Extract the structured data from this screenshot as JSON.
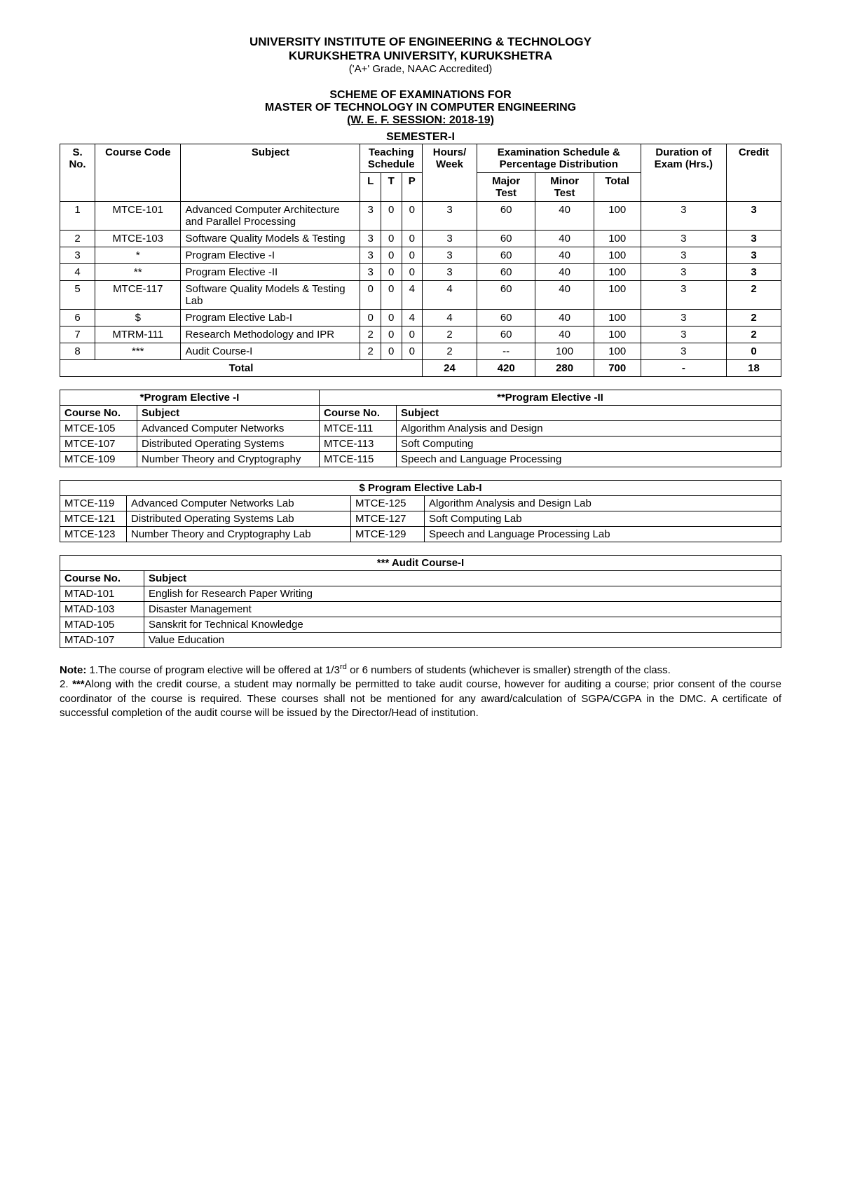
{
  "header": {
    "line1": "UNIVERSITY INSTITUTE OF ENGINEERING & TECHNOLOGY",
    "line2": "KURUKSHETRA UNIVERSITY, KURUKSHETRA",
    "line3": "('A+' Grade, NAAC Accredited)"
  },
  "scheme": {
    "s1": "SCHEME OF EXAMINATIONS FOR",
    "s2": "MASTER OF TECHNOLOGY IN COMPUTER ENGINEERING",
    "s3": "(W. E. F.  SESSION: 2018-19)"
  },
  "semester_title": "SEMESTER-I",
  "main_headers": {
    "sno": "S. No.",
    "code": "Course Code",
    "subject": "Subject",
    "teaching": "Teaching Schedule",
    "hours": "Hours/ Week",
    "exam": "Examination Schedule & Percentage Distribution",
    "duration": "Duration of Exam (Hrs.)",
    "credit": "Credit",
    "L": "L",
    "T": "T",
    "P": "P",
    "major": "Major Test",
    "minor": "Minor Test",
    "total": "Total"
  },
  "rows": [
    {
      "sno": "1",
      "code": "MTCE-101",
      "subject": "Advanced Computer Architecture and Parallel Processing",
      "L": "3",
      "T": "0",
      "P": "0",
      "hours": "3",
      "major": "60",
      "minor": "40",
      "total": "100",
      "dur": "3",
      "credit": "3"
    },
    {
      "sno": "2",
      "code": "MTCE-103",
      "subject": "Software Quality Models & Testing",
      "L": "3",
      "T": "0",
      "P": "0",
      "hours": "3",
      "major": "60",
      "minor": "40",
      "total": "100",
      "dur": "3",
      "credit": "3"
    },
    {
      "sno": "3",
      "code": "*",
      "subject": "Program Elective -I",
      "L": "3",
      "T": "0",
      "P": "0",
      "hours": "3",
      "major": "60",
      "minor": "40",
      "total": "100",
      "dur": "3",
      "credit": "3"
    },
    {
      "sno": "4",
      "code": "**",
      "subject": "Program Elective -II",
      "L": "3",
      "T": "0",
      "P": "0",
      "hours": "3",
      "major": "60",
      "minor": "40",
      "total": "100",
      "dur": "3",
      "credit": "3"
    },
    {
      "sno": "5",
      "code": "MTCE-117",
      "subject": "Software Quality Models & Testing Lab",
      "L": "0",
      "T": "0",
      "P": "4",
      "hours": "4",
      "major": "60",
      "minor": "40",
      "total": "100",
      "dur": "3",
      "credit": "2"
    },
    {
      "sno": "6",
      "code": "$",
      "subject": "Program Elective Lab-I",
      "L": "0",
      "T": "0",
      "P": "4",
      "hours": "4",
      "major": "60",
      "minor": "40",
      "total": "100",
      "dur": "3",
      "credit": "2"
    },
    {
      "sno": "7",
      "code": "MTRM-111",
      "subject": "Research Methodology and IPR",
      "L": "2",
      "T": "0",
      "P": "0",
      "hours": "2",
      "major": "60",
      "minor": "40",
      "total": "100",
      "dur": "3",
      "credit": "2"
    },
    {
      "sno": "8",
      "code": "***",
      "subject": "Audit Course-I",
      "L": "2",
      "T": "0",
      "P": "0",
      "hours": "2",
      "major": "--",
      "minor": "100",
      "total": "100",
      "dur": "3",
      "credit": "0"
    }
  ],
  "totals": {
    "label": "Total",
    "hours": "24",
    "major": "420",
    "minor": "280",
    "total": "700",
    "dur": "-",
    "credit": "18"
  },
  "elective1": {
    "title": "*Program Elective -I",
    "h_code": "Course No.",
    "h_sub": "Subject",
    "rows": [
      {
        "code": "MTCE-105",
        "sub": "Advanced Computer Networks"
      },
      {
        "code": "MTCE-107",
        "sub": "Distributed Operating Systems"
      },
      {
        "code": "MTCE-109",
        "sub": "Number Theory and Cryptography"
      }
    ]
  },
  "elective2": {
    "title": "**Program Elective -II",
    "h_code": "Course No.",
    "h_sub": "Subject",
    "rows": [
      {
        "code": "MTCE-111",
        "sub": "Algorithm Analysis and Design"
      },
      {
        "code": "MTCE-113",
        "sub": "Soft Computing"
      },
      {
        "code": "MTCE-115",
        "sub": "Speech and Language Processing"
      }
    ]
  },
  "lab": {
    "title": "$ Program Elective Lab-I",
    "rows": [
      {
        "c1": "MTCE-119",
        "s1": "Advanced Computer Networks Lab",
        "c2": "MTCE-125",
        "s2": "Algorithm Analysis and Design Lab"
      },
      {
        "c1": "MTCE-121",
        "s1": "Distributed Operating Systems  Lab",
        "c2": "MTCE-127",
        "s2": "Soft Computing Lab"
      },
      {
        "c1": "MTCE-123",
        "s1": "Number Theory and Cryptography Lab",
        "c2": "MTCE-129",
        "s2": "Speech and Language Processing Lab"
      }
    ]
  },
  "audit": {
    "title": "*** Audit Course-I",
    "h_code": "Course No.",
    "h_sub": "Subject",
    "rows": [
      {
        "code": "MTAD-101",
        "sub": "English for Research Paper Writing"
      },
      {
        "code": "MTAD-103",
        "sub": "Disaster Management"
      },
      {
        "code": "MTAD-105",
        "sub": "Sanskrit for Technical Knowledge"
      },
      {
        "code": "MTAD-107",
        "sub": "Value Education"
      }
    ]
  },
  "notes": {
    "label": "Note:",
    "n1a": " 1.The course of program elective will be offered at 1/3",
    "n1sup": "rd",
    "n1b": " or 6 numbers of students (whichever is smaller) strength of the class.",
    "n2a": "2. ",
    "n2b": "***",
    "n2c": "Along with the credit course, a student may normally be permitted to take audit course, however for auditing a course; prior consent of the course coordinator of the course is required. These courses shall not be mentioned for any award/calculation of SGPA/CGPA in the DMC. A certificate of successful completion of the audit course will be issued by the Director/Head of institution."
  },
  "col_widths": {
    "main": [
      "45px",
      "110px",
      "230px",
      "25px",
      "25px",
      "25px",
      "70px",
      "75px",
      "75px",
      "60px",
      "110px",
      "70px"
    ],
    "elect": [
      "110px",
      "260px",
      "110px",
      "auto"
    ],
    "lab": [
      "95px",
      "320px",
      "105px",
      "auto"
    ],
    "audit": [
      "120px",
      "auto"
    ]
  }
}
